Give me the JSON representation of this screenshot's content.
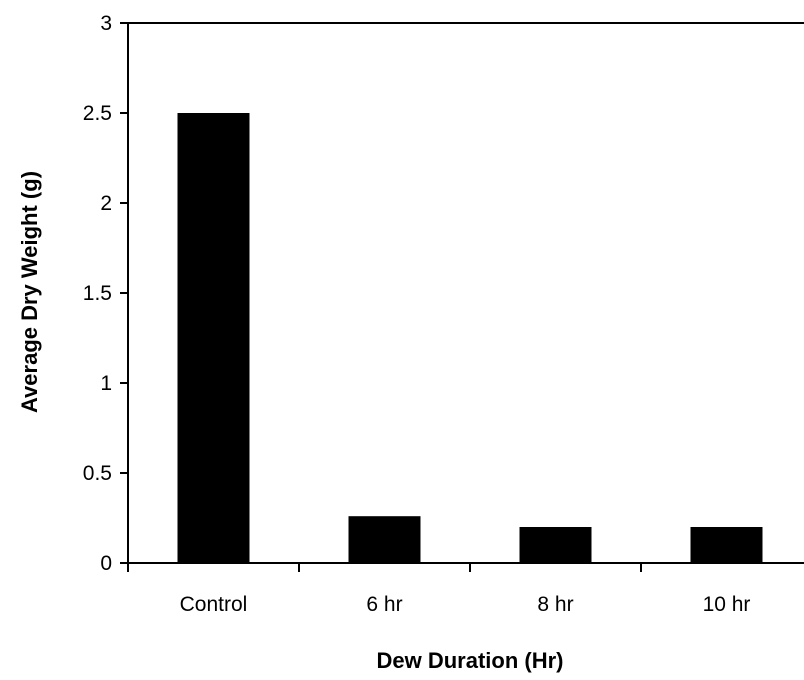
{
  "chart_data": {
    "type": "bar",
    "categories": [
      "Control",
      "6 hr",
      "8 hr",
      "10 hr"
    ],
    "values": [
      2.5,
      0.26,
      0.2,
      0.2
    ],
    "title": "",
    "xlabel": "Dew Duration (Hr)",
    "ylabel": "Average Dry Weight (g)",
    "ylim": [
      0,
      3
    ],
    "yticks": [
      0,
      0.5,
      1,
      1.5,
      2,
      2.5,
      3
    ],
    "ytick_labels": [
      "0",
      "0.5",
      "1",
      "1.5",
      "2",
      "2.5",
      "3"
    ],
    "grid": false,
    "legend": "none",
    "bar_color": "#000000",
    "axis_color": "#000000"
  }
}
